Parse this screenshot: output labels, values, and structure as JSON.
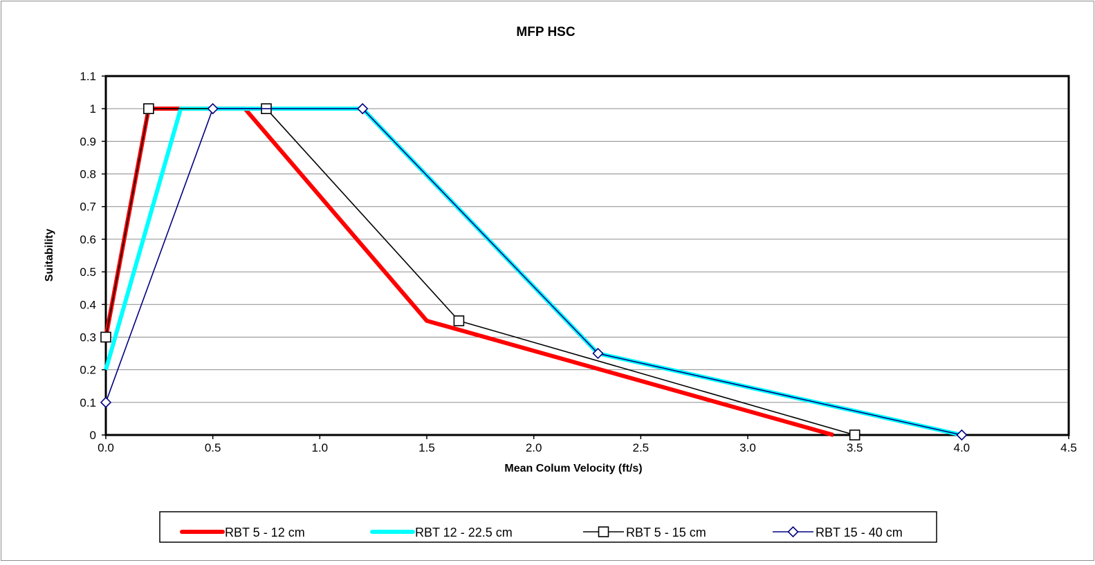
{
  "chart_data": {
    "type": "line",
    "title": "MFP HSC",
    "xlabel": "Mean Colum Velocity (ft/s)",
    "ylabel": "Suitability",
    "xlim": [
      0,
      4.5
    ],
    "ylim": [
      0,
      1.1
    ],
    "x_ticks": [
      "0.0",
      "0.5",
      "1.0",
      "1.5",
      "2.0",
      "2.5",
      "3.0",
      "3.5",
      "4.0",
      "4.5"
    ],
    "y_ticks": [
      "0",
      "0.1",
      "0.2",
      "0.3",
      "0.4",
      "0.5",
      "0.6",
      "0.7",
      "0.8",
      "0.9",
      "1",
      "1.1"
    ],
    "grid": "horizontal",
    "legend_position": "bottom",
    "series": [
      {
        "name": "RBT 5 - 12 cm",
        "color": "#ff0000",
        "marker": "none",
        "x": [
          0,
          0.2,
          0.65,
          1.5,
          3.4
        ],
        "y": [
          0.3,
          1,
          1,
          0.35,
          0
        ]
      },
      {
        "name": "RBT 12 - 22.5 cm",
        "color": "#00ffff",
        "marker": "none",
        "x": [
          0,
          0.35,
          1.2,
          2.3,
          4.0
        ],
        "y": [
          0.2,
          1,
          1,
          0.25,
          0
        ]
      },
      {
        "name": "RBT 5 - 15 cm",
        "color": "#000000",
        "marker": "square",
        "x": [
          0,
          0.2,
          0.75,
          1.65,
          3.5
        ],
        "y": [
          0.3,
          1,
          1,
          0.35,
          0
        ]
      },
      {
        "name": "RBT 15 - 40 cm",
        "color": "#000080",
        "marker": "diamond",
        "x": [
          0,
          0.5,
          1.2,
          2.3,
          4.0
        ],
        "y": [
          0.1,
          1,
          1,
          0.25,
          0
        ]
      }
    ]
  }
}
